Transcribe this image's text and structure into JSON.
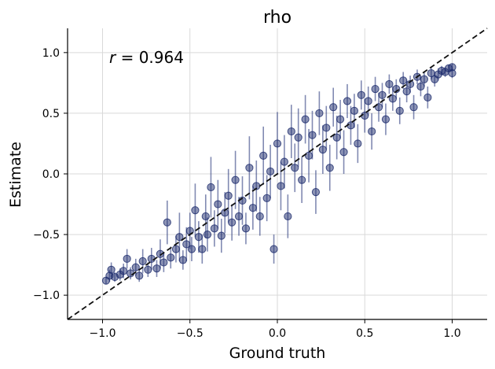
{
  "chart_data": {
    "type": "scatter",
    "title": "rho",
    "xlabel": "Ground truth",
    "ylabel": "Estimate",
    "xlim": [
      -1.2,
      1.2
    ],
    "ylim": [
      -1.2,
      1.2
    ],
    "xticks": [
      -1.0,
      -0.5,
      0.0,
      0.5,
      1.0
    ],
    "yticks": [
      -1.0,
      -0.5,
      0.0,
      0.5,
      1.0
    ],
    "xtick_labels": [
      "−1.0",
      "−0.5",
      "0.0",
      "0.5",
      "1.0"
    ],
    "ytick_labels": [
      "−1.0",
      "−0.5",
      "0.0",
      "0.5",
      "1.0"
    ],
    "grid": true,
    "annotation": {
      "var": "r",
      "text": " = 0.964"
    },
    "identity_line": {
      "x": [
        -1.2,
        1.2
      ],
      "y": [
        -1.2,
        1.2
      ],
      "style": "dashed"
    },
    "colors": {
      "points": "#1b2a6b",
      "errorbars": "#2d3c7e",
      "identity": "#111111",
      "grid": "#d9d9d9"
    },
    "series": [
      {
        "points": [
          [
            -0.98,
            -0.88,
            0.03
          ],
          [
            -0.96,
            -0.84,
            0.05
          ],
          [
            -0.95,
            -0.79,
            0.06
          ],
          [
            -0.93,
            -0.85,
            0.04
          ],
          [
            -0.9,
            -0.83,
            0.05
          ],
          [
            -0.88,
            -0.8,
            0.06
          ],
          [
            -0.86,
            -0.7,
            0.08
          ],
          [
            -0.84,
            -0.82,
            0.05
          ],
          [
            -0.81,
            -0.77,
            0.07
          ],
          [
            -0.79,
            -0.84,
            0.05
          ],
          [
            -0.77,
            -0.72,
            0.1
          ],
          [
            -0.74,
            -0.79,
            0.06
          ],
          [
            -0.72,
            -0.7,
            0.09
          ],
          [
            -0.69,
            -0.78,
            0.07
          ],
          [
            -0.67,
            -0.66,
            0.12
          ],
          [
            -0.65,
            -0.73,
            0.08
          ],
          [
            -0.63,
            -0.4,
            0.18
          ],
          [
            -0.61,
            -0.69,
            0.09
          ],
          [
            -0.58,
            -0.62,
            0.11
          ],
          [
            -0.56,
            -0.52,
            0.2
          ],
          [
            -0.54,
            -0.71,
            0.08
          ],
          [
            -0.52,
            -0.58,
            0.14
          ],
          [
            -0.5,
            -0.47,
            0.15
          ],
          [
            -0.49,
            -0.62,
            0.1
          ],
          [
            -0.47,
            -0.3,
            0.22
          ],
          [
            -0.45,
            -0.52,
            0.13
          ],
          [
            -0.43,
            -0.62,
            0.12
          ],
          [
            -0.41,
            -0.35,
            0.18
          ],
          [
            -0.4,
            -0.5,
            0.14
          ],
          [
            -0.38,
            -0.11,
            0.25
          ],
          [
            -0.36,
            -0.45,
            0.15
          ],
          [
            -0.34,
            -0.25,
            0.2
          ],
          [
            -0.32,
            -0.51,
            0.14
          ],
          [
            -0.3,
            -0.32,
            0.17
          ],
          [
            -0.28,
            -0.18,
            0.22
          ],
          [
            -0.26,
            -0.4,
            0.15
          ],
          [
            -0.24,
            -0.05,
            0.24
          ],
          [
            -0.22,
            -0.35,
            0.16
          ],
          [
            -0.2,
            -0.22,
            0.2
          ],
          [
            -0.18,
            -0.45,
            0.13
          ],
          [
            -0.16,
            0.05,
            0.26
          ],
          [
            -0.14,
            -0.28,
            0.18
          ],
          [
            -0.12,
            -0.1,
            0.21
          ],
          [
            -0.1,
            -0.35,
            0.16
          ],
          [
            -0.08,
            0.15,
            0.24
          ],
          [
            -0.06,
            -0.2,
            0.19
          ],
          [
            -0.04,
            0.02,
            0.22
          ],
          [
            -0.02,
            -0.62,
            0.12
          ],
          [
            0.0,
            0.25,
            0.26
          ],
          [
            0.02,
            -0.1,
            0.2
          ],
          [
            0.04,
            0.1,
            0.22
          ],
          [
            0.06,
            -0.35,
            0.18
          ],
          [
            0.08,
            0.35,
            0.22
          ],
          [
            0.1,
            0.05,
            0.2
          ],
          [
            0.12,
            0.3,
            0.24
          ],
          [
            0.14,
            -0.05,
            0.19
          ],
          [
            0.16,
            0.45,
            0.2
          ],
          [
            0.18,
            0.15,
            0.22
          ],
          [
            0.2,
            0.32,
            0.2
          ],
          [
            0.22,
            -0.15,
            0.18
          ],
          [
            0.24,
            0.5,
            0.18
          ],
          [
            0.26,
            0.2,
            0.2
          ],
          [
            0.28,
            0.38,
            0.18
          ],
          [
            0.3,
            0.05,
            0.19
          ],
          [
            0.32,
            0.55,
            0.16
          ],
          [
            0.34,
            0.3,
            0.18
          ],
          [
            0.36,
            0.45,
            0.16
          ],
          [
            0.38,
            0.18,
            0.18
          ],
          [
            0.4,
            0.6,
            0.14
          ],
          [
            0.42,
            0.4,
            0.16
          ],
          [
            0.44,
            0.52,
            0.14
          ],
          [
            0.46,
            0.25,
            0.16
          ],
          [
            0.48,
            0.65,
            0.12
          ],
          [
            0.5,
            0.48,
            0.14
          ],
          [
            0.52,
            0.6,
            0.12
          ],
          [
            0.54,
            0.35,
            0.15
          ],
          [
            0.56,
            0.7,
            0.1
          ],
          [
            0.58,
            0.55,
            0.12
          ],
          [
            0.6,
            0.65,
            0.1
          ],
          [
            0.62,
            0.45,
            0.13
          ],
          [
            0.64,
            0.74,
            0.08
          ],
          [
            0.66,
            0.62,
            0.1
          ],
          [
            0.68,
            0.7,
            0.08
          ],
          [
            0.7,
            0.52,
            0.11
          ],
          [
            0.72,
            0.77,
            0.07
          ],
          [
            0.74,
            0.68,
            0.09
          ],
          [
            0.76,
            0.74,
            0.07
          ],
          [
            0.78,
            0.55,
            0.1
          ],
          [
            0.8,
            0.8,
            0.06
          ],
          [
            0.82,
            0.72,
            0.08
          ],
          [
            0.84,
            0.78,
            0.06
          ],
          [
            0.86,
            0.63,
            0.09
          ],
          [
            0.88,
            0.83,
            0.05
          ],
          [
            0.9,
            0.78,
            0.06
          ],
          [
            0.92,
            0.82,
            0.05
          ],
          [
            0.94,
            0.85,
            0.04
          ],
          [
            0.96,
            0.84,
            0.04
          ],
          [
            0.98,
            0.87,
            0.03
          ],
          [
            1.0,
            0.83,
            0.04
          ],
          [
            1.0,
            0.88,
            0.03
          ]
        ]
      }
    ]
  }
}
